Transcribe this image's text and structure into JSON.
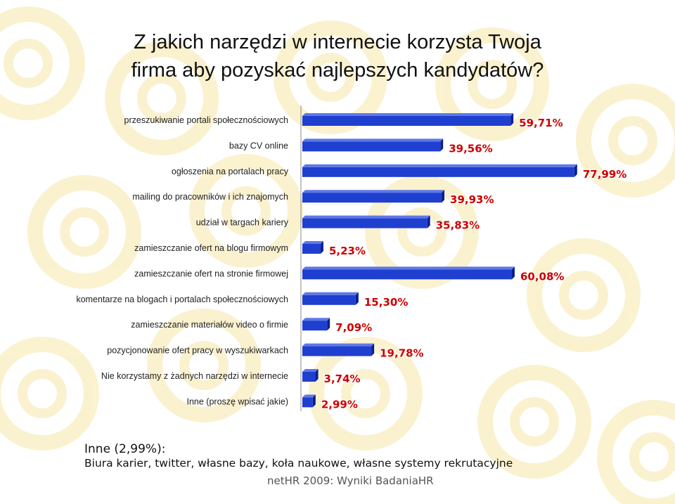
{
  "slide": {
    "title_line1": "Z jakich narzędzi w internecie korzysta Twoja",
    "title_line2": "firma aby pozyskać najlepszych kandydatów?",
    "note_title": "Inne (2,99%):",
    "note_body": "Biura karier, twitter, własne bazy, koła naukowe, własne systemy rekrutacyjne",
    "source": "netHR 2009: Wyniki BadaniaHR"
  },
  "colors": {
    "bar": "#1f3fcf",
    "bar_dark": "#0a1f8a",
    "value_label": "#cc0000",
    "value_label_outline": "#ffffff",
    "watermark": "#f7e7a8"
  },
  "chart_data": {
    "type": "bar",
    "orientation": "horizontal",
    "title": "",
    "xlabel": "",
    "ylabel": "",
    "xlim": [
      0,
      100
    ],
    "grid": false,
    "legend": "none",
    "categories": [
      "przeszukiwanie portali społecznościowych",
      "bazy CV online",
      "ogłoszenia na portalach pracy",
      "mailing do pracowników i ich znajomych",
      "udział w targach kariery",
      "zamieszczanie ofert na blogu firmowym",
      "zamieszczanie ofert na stronie firmowej",
      "komentarze na blogach i portalach społecznościowych",
      "zamieszczanie materiałów video o firmie",
      "pozycjonowanie ofert pracy w wyszukiwarkach",
      "Nie korzystamy z żadnych narzędzi w internecie",
      "Inne (proszę wpisać jakie)"
    ],
    "values": [
      59.71,
      39.56,
      77.99,
      39.93,
      35.83,
      5.23,
      60.08,
      15.3,
      7.09,
      19.78,
      3.74,
      2.99
    ],
    "value_labels": [
      "59,71%",
      "39,56%",
      "77,99%",
      "39,93%",
      "35,83%",
      "5,23%",
      "60,08%",
      "15,30%",
      "7,09%",
      "19,78%",
      "3,74%",
      "2,99%"
    ]
  }
}
